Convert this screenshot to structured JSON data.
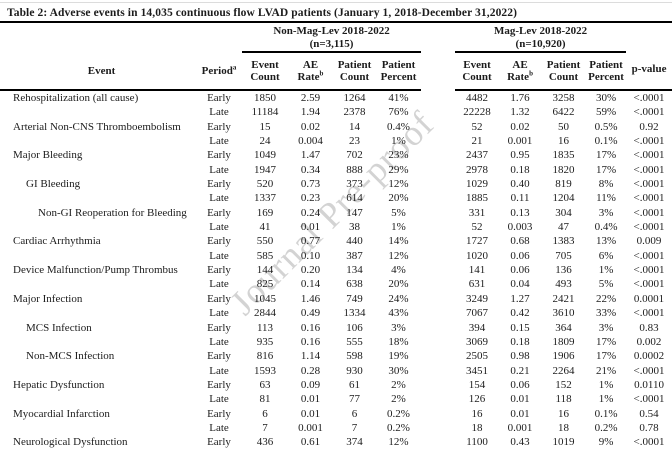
{
  "title": "Table 2: Adverse events in 14,035 continuous flow LVAD patients (January 1, 2018-December 31,2022)",
  "watermark": "Journal Pre-proof",
  "header": {
    "event": "Event",
    "period": "Period",
    "period_sup": "a",
    "pvalue": "p-value",
    "group1": {
      "name": "Non-Mag-Lev 2018-2022",
      "n": "(n=3,115)"
    },
    "group2": {
      "name": "Mag-Lev 2018-2022",
      "n": "(n=10,920)"
    },
    "cols": [
      {
        "line1": "Event",
        "line2": "Count"
      },
      {
        "line1": "AE",
        "line2": "Rate",
        "sup": "b"
      },
      {
        "line1": "Patient",
        "line2": "Count"
      },
      {
        "line1": "Patient",
        "line2": "Percent"
      }
    ]
  },
  "rows": [
    {
      "event": "Rehospitalization (all cause)",
      "indent": 0,
      "period": "Early",
      "nm": [
        "1850",
        "2.59",
        "1264",
        "41%"
      ],
      "ml": [
        "4482",
        "1.76",
        "3258",
        "30%"
      ],
      "p": "<.0001"
    },
    {
      "event": "",
      "indent": 0,
      "period": "Late",
      "nm": [
        "11184",
        "1.94",
        "2378",
        "76%"
      ],
      "ml": [
        "22228",
        "1.32",
        "6422",
        "59%"
      ],
      "p": "<.0001"
    },
    {
      "event": "Arterial Non-CNS Thromboembolism",
      "indent": 0,
      "period": "Early",
      "nm": [
        "15",
        "0.02",
        "14",
        "0.4%"
      ],
      "ml": [
        "52",
        "0.02",
        "50",
        "0.5%"
      ],
      "p": "0.92"
    },
    {
      "event": "",
      "indent": 0,
      "period": "Late",
      "nm": [
        "24",
        "0.004",
        "23",
        "1%"
      ],
      "ml": [
        "21",
        "0.001",
        "16",
        "0.1%"
      ],
      "p": "<.0001"
    },
    {
      "event": "Major Bleeding",
      "indent": 0,
      "period": "Early",
      "nm": [
        "1049",
        "1.47",
        "702",
        "23%"
      ],
      "ml": [
        "2437",
        "0.95",
        "1835",
        "17%"
      ],
      "p": "<.0001"
    },
    {
      "event": "",
      "indent": 0,
      "period": "Late",
      "nm": [
        "1947",
        "0.34",
        "888",
        "29%"
      ],
      "ml": [
        "2978",
        "0.18",
        "1820",
        "17%"
      ],
      "p": "<.0001"
    },
    {
      "event": "GI Bleeding",
      "indent": 1,
      "period": "Early",
      "nm": [
        "520",
        "0.73",
        "373",
        "12%"
      ],
      "ml": [
        "1029",
        "0.40",
        "819",
        "8%"
      ],
      "p": "<.0001"
    },
    {
      "event": "",
      "indent": 1,
      "period": "Late",
      "nm": [
        "1337",
        "0.23",
        "614",
        "20%"
      ],
      "ml": [
        "1885",
        "0.11",
        "1204",
        "11%"
      ],
      "p": "<.0001"
    },
    {
      "event": "Non-GI Reoperation for Bleeding",
      "indent": 2,
      "period": "Early",
      "nm": [
        "169",
        "0.24",
        "147",
        "5%"
      ],
      "ml": [
        "331",
        "0.13",
        "304",
        "3%"
      ],
      "p": "<.0001"
    },
    {
      "event": "",
      "indent": 2,
      "period": "Late",
      "nm": [
        "41",
        "0.01",
        "38",
        "1%"
      ],
      "ml": [
        "52",
        "0.003",
        "47",
        "0.4%"
      ],
      "p": "<.0001"
    },
    {
      "event": "Cardiac Arrhythmia",
      "indent": 0,
      "period": "Early",
      "nm": [
        "550",
        "0.77",
        "440",
        "14%"
      ],
      "ml": [
        "1727",
        "0.68",
        "1383",
        "13%"
      ],
      "p": "0.009"
    },
    {
      "event": "",
      "indent": 0,
      "period": "Late",
      "nm": [
        "585",
        "0.10",
        "387",
        "12%"
      ],
      "ml": [
        "1020",
        "0.06",
        "705",
        "6%"
      ],
      "p": "<.0001"
    },
    {
      "event": "Device Malfunction/Pump Thrombus",
      "indent": 0,
      "period": "Early",
      "nm": [
        "144",
        "0.20",
        "134",
        "4%"
      ],
      "ml": [
        "141",
        "0.06",
        "136",
        "1%"
      ],
      "p": "<.0001"
    },
    {
      "event": "",
      "indent": 0,
      "period": "Late",
      "nm": [
        "825",
        "0.14",
        "638",
        "20%"
      ],
      "ml": [
        "631",
        "0.04",
        "493",
        "5%"
      ],
      "p": "<.0001"
    },
    {
      "event": "Major Infection",
      "indent": 0,
      "period": "Early",
      "nm": [
        "1045",
        "1.46",
        "749",
        "24%"
      ],
      "ml": [
        "3249",
        "1.27",
        "2421",
        "22%"
      ],
      "p": "0.0001"
    },
    {
      "event": "",
      "indent": 0,
      "period": "Late",
      "nm": [
        "2844",
        "0.49",
        "1334",
        "43%"
      ],
      "ml": [
        "7067",
        "0.42",
        "3610",
        "33%"
      ],
      "p": "<.0001"
    },
    {
      "event": "MCS Infection",
      "indent": 1,
      "period": "Early",
      "nm": [
        "113",
        "0.16",
        "106",
        "3%"
      ],
      "ml": [
        "394",
        "0.15",
        "364",
        "3%"
      ],
      "p": "0.83"
    },
    {
      "event": "",
      "indent": 1,
      "period": "Late",
      "nm": [
        "935",
        "0.16",
        "555",
        "18%"
      ],
      "ml": [
        "3069",
        "0.18",
        "1809",
        "17%"
      ],
      "p": "0.002"
    },
    {
      "event": "Non-MCS Infection",
      "indent": 1,
      "period": "Early",
      "nm": [
        "816",
        "1.14",
        "598",
        "19%"
      ],
      "ml": [
        "2505",
        "0.98",
        "1906",
        "17%"
      ],
      "p": "0.0002"
    },
    {
      "event": "",
      "indent": 1,
      "period": "Late",
      "nm": [
        "1593",
        "0.28",
        "930",
        "30%"
      ],
      "ml": [
        "3451",
        "0.21",
        "2264",
        "21%"
      ],
      "p": "<.0001"
    },
    {
      "event": "Hepatic Dysfunction",
      "indent": 0,
      "period": "Early",
      "nm": [
        "63",
        "0.09",
        "61",
        "2%"
      ],
      "ml": [
        "154",
        "0.06",
        "152",
        "1%"
      ],
      "p": "0.0110"
    },
    {
      "event": "",
      "indent": 0,
      "period": "Late",
      "nm": [
        "81",
        "0.01",
        "77",
        "2%"
      ],
      "ml": [
        "126",
        "0.01",
        "118",
        "1%"
      ],
      "p": "<.0001"
    },
    {
      "event": "Myocardial Infarction",
      "indent": 0,
      "period": "Early",
      "nm": [
        "6",
        "0.01",
        "6",
        "0.2%"
      ],
      "ml": [
        "16",
        "0.01",
        "16",
        "0.1%"
      ],
      "p": "0.54"
    },
    {
      "event": "",
      "indent": 0,
      "period": "Late",
      "nm": [
        "7",
        "0.001",
        "7",
        "0.2%"
      ],
      "ml": [
        "18",
        "0.001",
        "18",
        "0.2%"
      ],
      "p": "0.78"
    },
    {
      "event": "Neurological Dysfunction",
      "indent": 0,
      "period": "Early",
      "nm": [
        "436",
        "0.61",
        "374",
        "12%"
      ],
      "ml": [
        "1100",
        "0.43",
        "1019",
        "9%"
      ],
      "p": "<.0001"
    }
  ]
}
